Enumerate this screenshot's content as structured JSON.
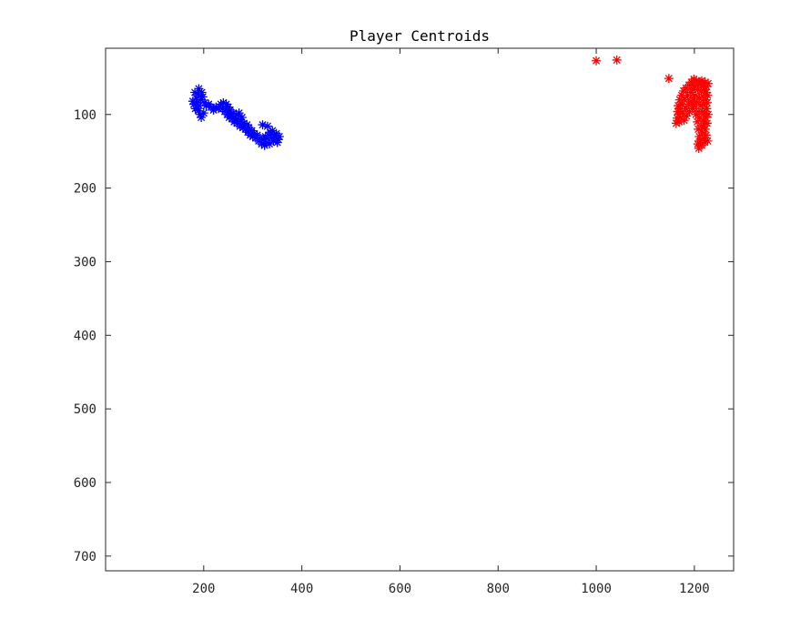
{
  "chart_data": {
    "type": "scatter",
    "title": "Player Centroids",
    "xlabel": "",
    "ylabel": "",
    "xlim": [
      0,
      1280
    ],
    "ylim": [
      720,
      10
    ],
    "y_axis_reversed": true,
    "grid": false,
    "marker": "asterisk",
    "xticks": [
      200,
      400,
      600,
      800,
      1000,
      1200
    ],
    "yticks": [
      100,
      200,
      300,
      400,
      500,
      600,
      700
    ],
    "series": [
      {
        "color": "#0000ff",
        "points": [
          [
            178,
            82
          ],
          [
            180,
            86
          ],
          [
            182,
            70
          ],
          [
            183,
            92
          ],
          [
            185,
            78
          ],
          [
            186,
            84
          ],
          [
            188,
            72
          ],
          [
            189,
            95
          ],
          [
            190,
            65
          ],
          [
            191,
            88
          ],
          [
            193,
            100
          ],
          [
            194,
            80
          ],
          [
            195,
            104
          ],
          [
            196,
            70
          ],
          [
            198,
            76
          ],
          [
            200,
            98
          ],
          [
            202,
            84
          ],
          [
            205,
            88
          ],
          [
            210,
            86
          ],
          [
            215,
            90
          ],
          [
            220,
            94
          ],
          [
            225,
            90
          ],
          [
            230,
            92
          ],
          [
            235,
            86
          ],
          [
            238,
            92
          ],
          [
            240,
            84
          ],
          [
            243,
            96
          ],
          [
            246,
            86
          ],
          [
            248,
            100
          ],
          [
            250,
            90
          ],
          [
            252,
            104
          ],
          [
            254,
            94
          ],
          [
            256,
            100
          ],
          [
            258,
            106
          ],
          [
            260,
            98
          ],
          [
            262,
            110
          ],
          [
            264,
            104
          ],
          [
            266,
            100
          ],
          [
            268,
            112
          ],
          [
            270,
            106
          ],
          [
            272,
            98
          ],
          [
            274,
            116
          ],
          [
            276,
            110
          ],
          [
            278,
            104
          ],
          [
            280,
            118
          ],
          [
            282,
            112
          ],
          [
            285,
            120
          ],
          [
            288,
            114
          ],
          [
            290,
            124
          ],
          [
            292,
            118
          ],
          [
            295,
            128
          ],
          [
            298,
            122
          ],
          [
            300,
            130
          ],
          [
            303,
            126
          ],
          [
            306,
            132
          ],
          [
            309,
            128
          ],
          [
            312,
            136
          ],
          [
            315,
            132
          ],
          [
            318,
            140
          ],
          [
            320,
            114
          ],
          [
            322,
            134
          ],
          [
            324,
            142
          ],
          [
            326,
            130
          ],
          [
            328,
            138
          ],
          [
            330,
            116
          ],
          [
            332,
            128
          ],
          [
            334,
            140
          ],
          [
            336,
            124
          ],
          [
            338,
            132
          ],
          [
            340,
            122
          ],
          [
            342,
            136
          ],
          [
            344,
            128
          ],
          [
            346,
            132
          ],
          [
            348,
            126
          ],
          [
            350,
            138
          ],
          [
            352,
            134
          ],
          [
            354,
            130
          ]
        ]
      },
      {
        "color": "#ff0000",
        "points": [
          [
            1000,
            27
          ],
          [
            1042,
            26
          ],
          [
            1148,
            51
          ],
          [
            1163,
            112
          ],
          [
            1165,
            105
          ],
          [
            1166,
            96
          ],
          [
            1167,
            88
          ],
          [
            1168,
            100
          ],
          [
            1169,
            110
          ],
          [
            1170,
            80
          ],
          [
            1171,
            92
          ],
          [
            1172,
            104
          ],
          [
            1174,
            74
          ],
          [
            1175,
            86
          ],
          [
            1176,
            98
          ],
          [
            1178,
            68
          ],
          [
            1179,
            108
          ],
          [
            1180,
            80
          ],
          [
            1182,
            92
          ],
          [
            1183,
            64
          ],
          [
            1184,
            102
          ],
          [
            1186,
            74
          ],
          [
            1188,
            86
          ],
          [
            1189,
            60
          ],
          [
            1190,
            96
          ],
          [
            1192,
            70
          ],
          [
            1193,
            82
          ],
          [
            1194,
            56
          ],
          [
            1196,
            92
          ],
          [
            1197,
            66
          ],
          [
            1198,
            78
          ],
          [
            1199,
            52
          ],
          [
            1200,
            88
          ],
          [
            1201,
            62
          ],
          [
            1202,
            74
          ],
          [
            1203,
            100
          ],
          [
            1204,
            54
          ],
          [
            1205,
            84
          ],
          [
            1206,
            110
          ],
          [
            1207,
            66
          ],
          [
            1207,
            140
          ],
          [
            1208,
            120
          ],
          [
            1208,
            96
          ],
          [
            1209,
            58
          ],
          [
            1209,
            146
          ],
          [
            1210,
            130
          ],
          [
            1210,
            78
          ],
          [
            1211,
            104
          ],
          [
            1212,
            56
          ],
          [
            1212,
            136
          ],
          [
            1213,
            88
          ],
          [
            1214,
            116
          ],
          [
            1214,
            68
          ],
          [
            1215,
            142
          ],
          [
            1215,
            54
          ],
          [
            1216,
            96
          ],
          [
            1216,
            124
          ],
          [
            1217,
            76
          ],
          [
            1218,
            108
          ],
          [
            1218,
            60
          ],
          [
            1219,
            132
          ],
          [
            1219,
            86
          ],
          [
            1220,
            114
          ],
          [
            1220,
            66
          ],
          [
            1221,
            98
          ],
          [
            1221,
            138
          ],
          [
            1222,
            56
          ],
          [
            1222,
            120
          ],
          [
            1223,
            80
          ],
          [
            1223,
            104
          ],
          [
            1224,
            70
          ],
          [
            1224,
            128
          ],
          [
            1225,
            92
          ],
          [
            1225,
            62
          ],
          [
            1226,
            112
          ],
          [
            1226,
            84
          ],
          [
            1227,
            136
          ],
          [
            1227,
            74
          ],
          [
            1228,
            100
          ],
          [
            1228,
            58
          ]
        ]
      }
    ]
  }
}
